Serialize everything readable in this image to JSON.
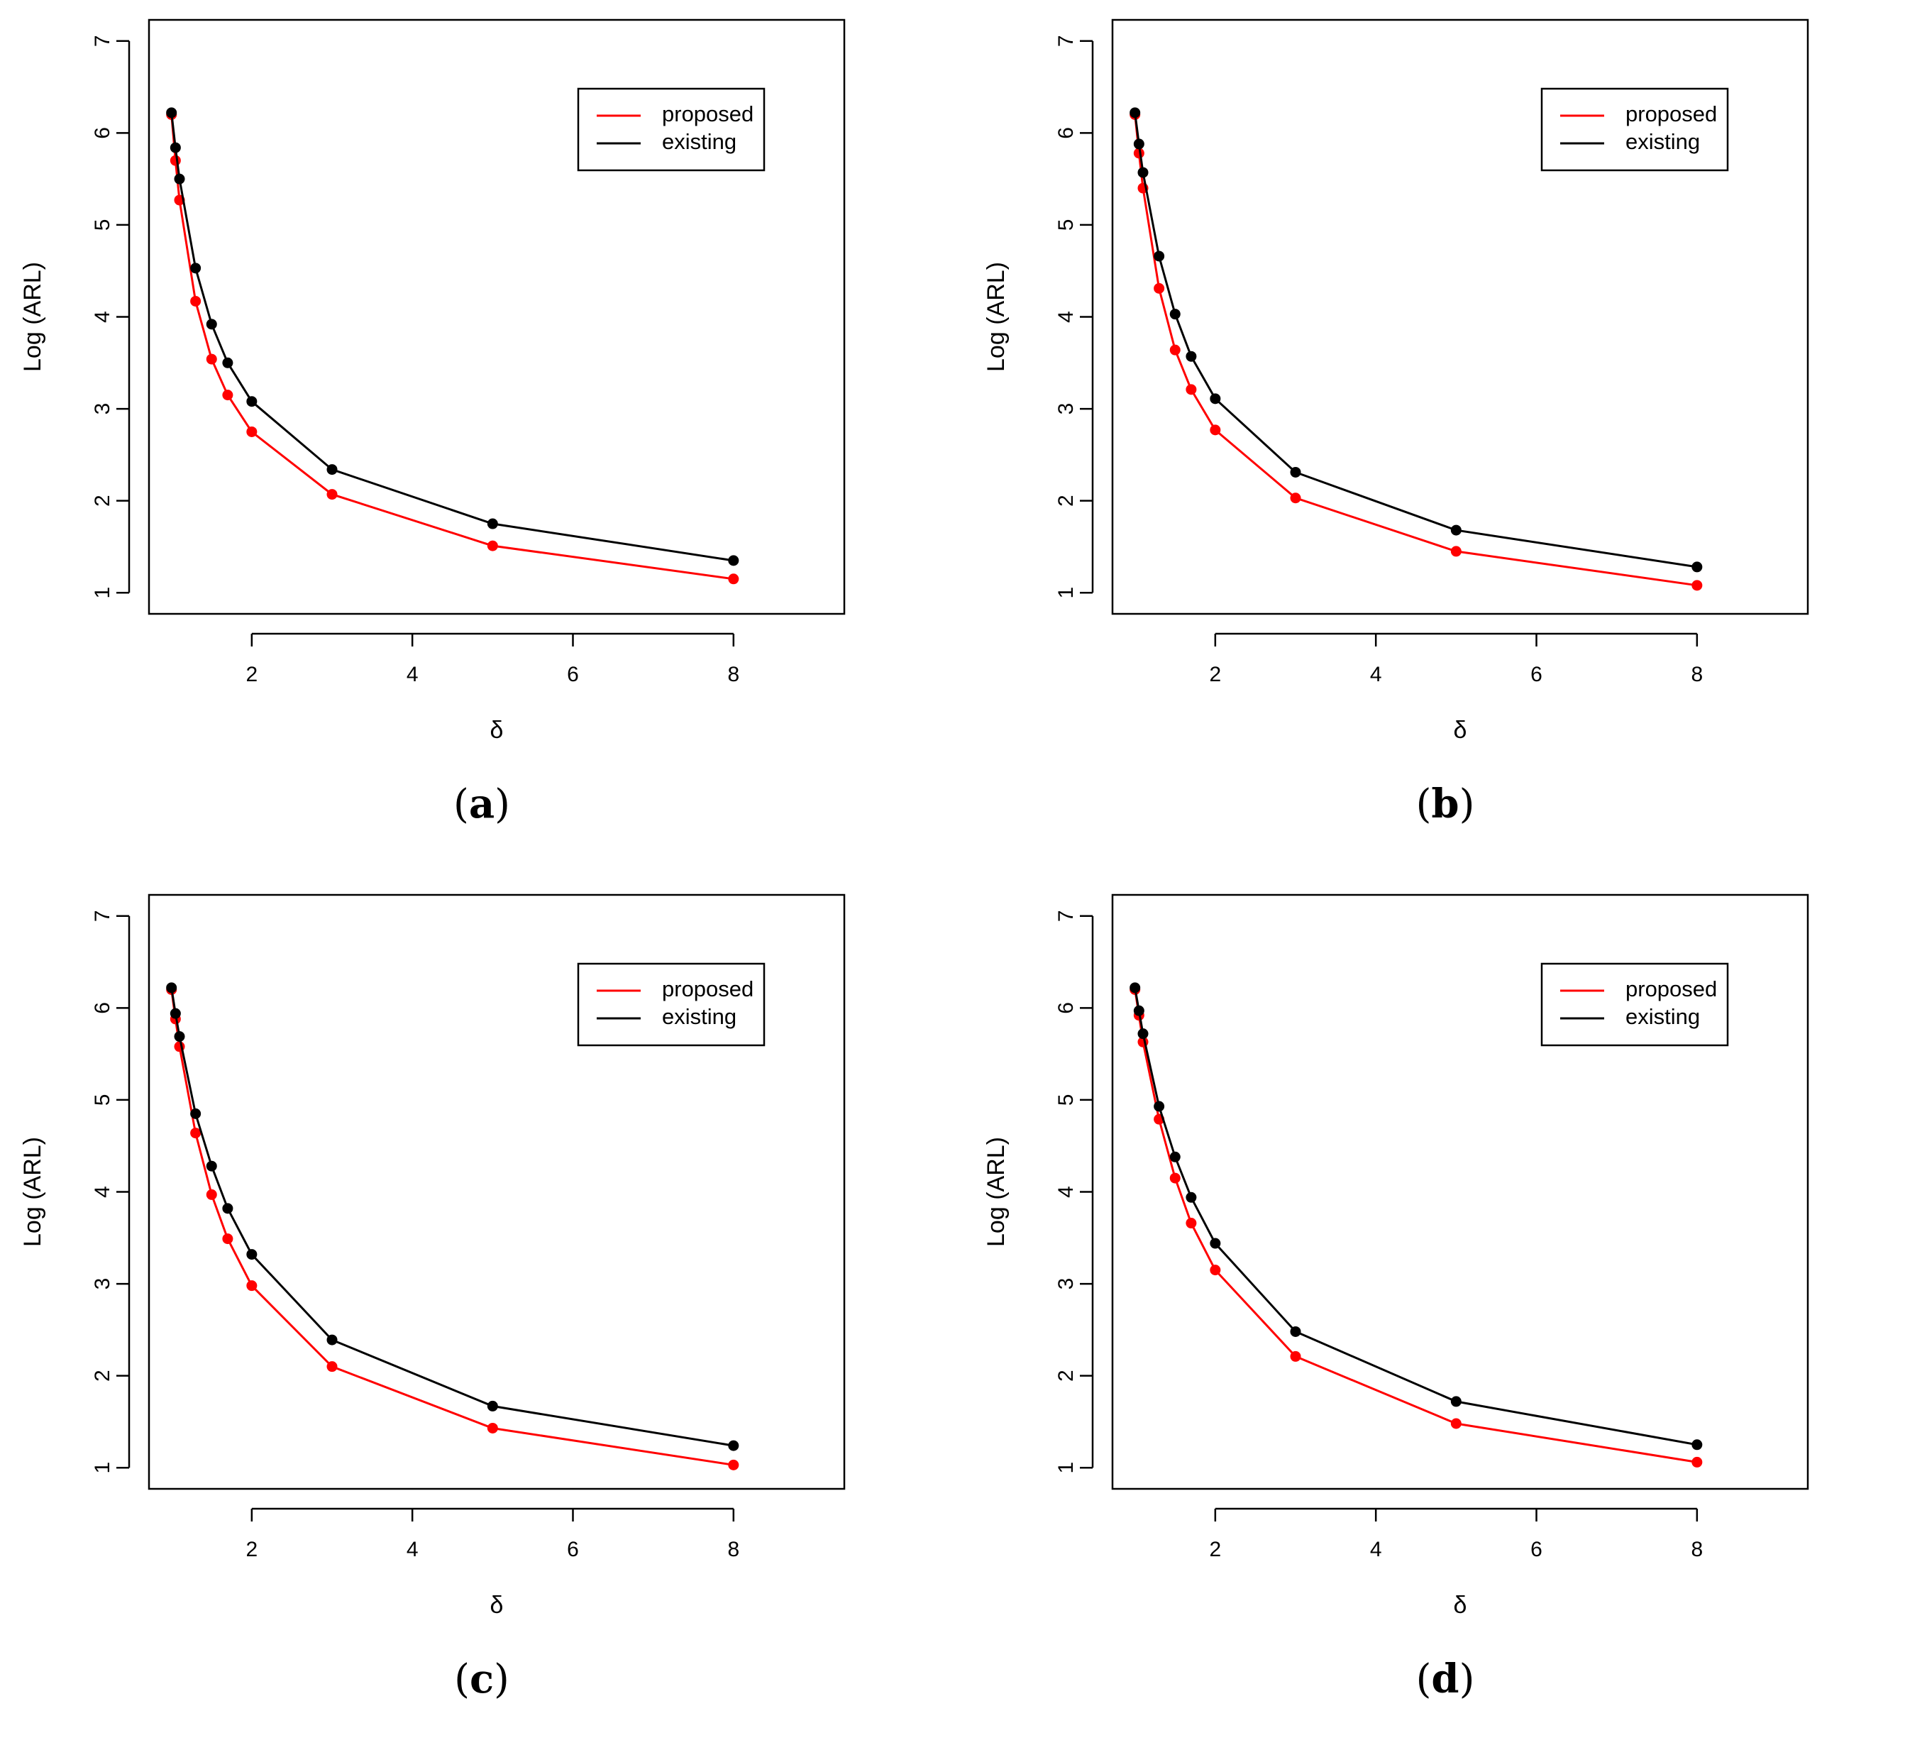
{
  "chart_data": [
    {
      "panel": "a",
      "type": "line",
      "xlabel": "δ",
      "ylabel": "Log (ARL)",
      "xlim": [
        1,
        8
      ],
      "ylim": [
        1,
        7
      ],
      "xticks": [
        "2",
        "4",
        "6",
        "8"
      ],
      "yticks": [
        "1",
        "2",
        "3",
        "4",
        "5",
        "6",
        "7"
      ],
      "legend": {
        "position": "top-right",
        "entries": [
          "proposed",
          "existing"
        ]
      },
      "x": [
        1.0,
        1.05,
        1.1,
        1.3,
        1.5,
        1.7,
        2.0,
        3.0,
        5.0,
        8.0
      ],
      "series": [
        {
          "name": "proposed",
          "color": "#ff0000",
          "values": [
            6.2,
            5.7,
            5.27,
            4.17,
            3.54,
            3.15,
            2.75,
            2.07,
            1.51,
            1.15
          ]
        },
        {
          "name": "existing",
          "color": "#000000",
          "values": [
            6.22,
            5.84,
            5.5,
            4.53,
            3.92,
            3.5,
            3.08,
            2.34,
            1.75,
            1.35
          ]
        }
      ]
    },
    {
      "panel": "b",
      "type": "line",
      "xlabel": "δ",
      "ylabel": "Log (ARL)",
      "xlim": [
        1,
        8
      ],
      "ylim": [
        1,
        7
      ],
      "xticks": [
        "2",
        "4",
        "6",
        "8"
      ],
      "yticks": [
        "1",
        "2",
        "3",
        "4",
        "5",
        "6",
        "7"
      ],
      "legend": {
        "position": "top-right",
        "entries": [
          "proposed",
          "existing"
        ]
      },
      "x": [
        1.0,
        1.05,
        1.1,
        1.3,
        1.5,
        1.7,
        2.0,
        3.0,
        5.0,
        8.0
      ],
      "series": [
        {
          "name": "proposed",
          "color": "#ff0000",
          "values": [
            6.2,
            5.78,
            5.4,
            4.31,
            3.64,
            3.21,
            2.77,
            2.03,
            1.45,
            1.08
          ]
        },
        {
          "name": "existing",
          "color": "#000000",
          "values": [
            6.22,
            5.88,
            5.57,
            4.66,
            4.03,
            3.57,
            3.11,
            2.31,
            1.68,
            1.28
          ]
        }
      ]
    },
    {
      "panel": "c",
      "type": "line",
      "xlabel": "δ",
      "ylabel": "Log (ARL)",
      "xlim": [
        1,
        8
      ],
      "ylim": [
        1,
        7
      ],
      "xticks": [
        "2",
        "4",
        "6",
        "8"
      ],
      "yticks": [
        "1",
        "2",
        "3",
        "4",
        "5",
        "6",
        "7"
      ],
      "legend": {
        "position": "top-right",
        "entries": [
          "proposed",
          "existing"
        ]
      },
      "x": [
        1.0,
        1.05,
        1.1,
        1.3,
        1.5,
        1.7,
        2.0,
        3.0,
        5.0,
        8.0
      ],
      "series": [
        {
          "name": "proposed",
          "color": "#ff0000",
          "values": [
            6.2,
            5.88,
            5.58,
            4.64,
            3.97,
            3.49,
            2.98,
            2.1,
            1.43,
            1.03
          ]
        },
        {
          "name": "existing",
          "color": "#000000",
          "values": [
            6.22,
            5.94,
            5.69,
            4.85,
            4.28,
            3.82,
            3.32,
            2.39,
            1.67,
            1.24
          ]
        }
      ]
    },
    {
      "panel": "d",
      "type": "line",
      "xlabel": "δ",
      "ylabel": "Log (ARL)",
      "xlim": [
        1,
        8
      ],
      "ylim": [
        1,
        7
      ],
      "xticks": [
        "2",
        "4",
        "6",
        "8"
      ],
      "yticks": [
        "1",
        "2",
        "3",
        "4",
        "5",
        "6",
        "7"
      ],
      "legend": {
        "position": "top-right",
        "entries": [
          "proposed",
          "existing"
        ]
      },
      "x": [
        1.0,
        1.05,
        1.1,
        1.3,
        1.5,
        1.7,
        2.0,
        3.0,
        5.0,
        8.0
      ],
      "series": [
        {
          "name": "proposed",
          "color": "#ff0000",
          "values": [
            6.2,
            5.92,
            5.63,
            4.79,
            4.15,
            3.66,
            3.15,
            2.21,
            1.48,
            1.06
          ]
        },
        {
          "name": "existing",
          "color": "#000000",
          "values": [
            6.22,
            5.97,
            5.72,
            4.93,
            4.38,
            3.94,
            3.44,
            2.48,
            1.72,
            1.25
          ]
        }
      ]
    }
  ],
  "labels": {
    "a": {
      "open": "(",
      "letter": "a",
      "close": ")"
    },
    "b": {
      "open": "(",
      "letter": "b",
      "close": ")"
    },
    "c": {
      "open": "(",
      "letter": "c",
      "close": ")"
    },
    "d": {
      "open": "(",
      "letter": "d",
      "close": ")"
    }
  }
}
